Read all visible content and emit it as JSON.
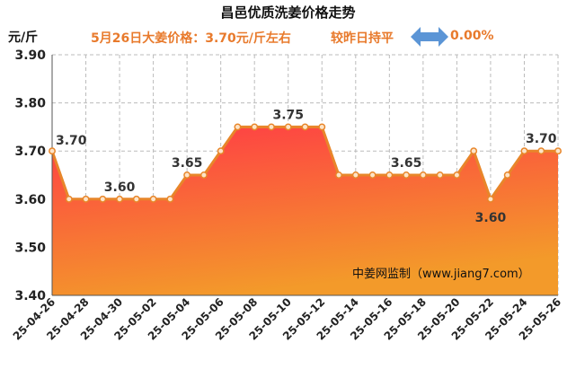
{
  "header": {
    "title": "昌邑优质洗姜价格走势",
    "subtitle": "5月26日大姜价格：3.70元/斤左右",
    "unit_label": "元/斤",
    "change_label": "较昨日持平",
    "change_percent": "0.00%",
    "change_icon": "double-arrow-icon"
  },
  "watermark": "中姜网监制（www.jiang7.com）",
  "chart_data": {
    "type": "area",
    "x": [
      "25-04-26",
      "25-04-27",
      "25-04-28",
      "25-04-29",
      "25-04-30",
      "25-05-01",
      "25-05-02",
      "25-05-03",
      "25-05-04",
      "25-05-05",
      "25-05-06",
      "25-05-07",
      "25-05-08",
      "25-05-09",
      "25-05-10",
      "25-05-11",
      "25-05-12",
      "25-05-13",
      "25-05-14",
      "25-05-15",
      "25-05-16",
      "25-05-17",
      "25-05-18",
      "25-05-19",
      "25-05-20",
      "25-05-21",
      "25-05-22",
      "25-05-23",
      "25-05-24",
      "25-05-25",
      "25-05-26"
    ],
    "xticks": [
      "25-04-26",
      "25-04-28",
      "25-04-30",
      "25-05-02",
      "25-05-04",
      "25-05-06",
      "25-05-08",
      "25-05-10",
      "25-05-12",
      "25-05-14",
      "25-05-16",
      "25-05-18",
      "25-05-20",
      "25-05-22",
      "25-05-24",
      "25-05-26"
    ],
    "values": [
      3.7,
      3.6,
      3.6,
      3.6,
      3.6,
      3.6,
      3.6,
      3.6,
      3.65,
      3.65,
      3.7,
      3.75,
      3.75,
      3.75,
      3.75,
      3.75,
      3.75,
      3.65,
      3.65,
      3.65,
      3.65,
      3.65,
      3.65,
      3.65,
      3.65,
      3.7,
      3.6,
      3.65,
      3.7,
      3.7,
      3.7
    ],
    "yticks": [
      "3.40",
      "3.50",
      "3.60",
      "3.70",
      "3.80",
      "3.90"
    ],
    "ylim": [
      3.4,
      3.9
    ],
    "grid": true,
    "data_labels": [
      {
        "index": 0,
        "text": "3.70"
      },
      {
        "index": 4,
        "text": "3.60"
      },
      {
        "index": 8,
        "text": "3.65"
      },
      {
        "index": 14,
        "text": "3.75"
      },
      {
        "index": 21,
        "text": "3.65"
      },
      {
        "index": 26,
        "text": "3.60"
      },
      {
        "index": 29,
        "text": "3.70"
      }
    ],
    "colors": {
      "fill_top": "#ff3a46",
      "fill_bottom": "#f39a2a",
      "line": "#e8862a",
      "marker_fill": "#fde4c8",
      "marker_stroke": "#e8862a",
      "grid": "#bbbbbb",
      "label": "#333333"
    }
  }
}
